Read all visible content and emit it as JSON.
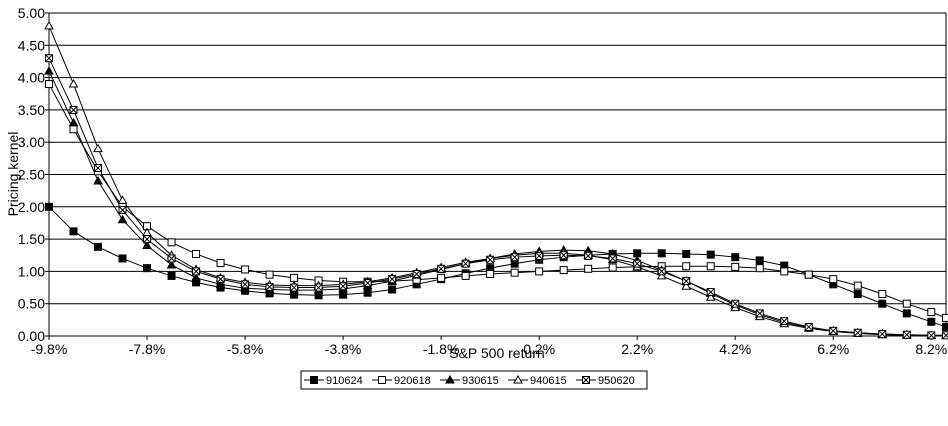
{
  "chart_data": {
    "type": "line",
    "x_label": "S&P 500 return",
    "y_label": "Pricing kernel",
    "x": [
      -9.8,
      -9.3,
      -8.8,
      -8.3,
      -7.8,
      -7.3,
      -6.8,
      -6.3,
      -5.8,
      -5.3,
      -4.8,
      -4.3,
      -3.8,
      -3.3,
      -2.8,
      -2.3,
      -1.8,
      -1.3,
      -0.8,
      -0.3,
      0.2,
      0.7,
      1.2,
      1.7,
      2.2,
      2.7,
      3.2,
      3.7,
      4.2,
      4.7,
      5.2,
      5.7,
      6.2,
      6.7,
      7.2,
      7.7,
      8.2,
      8.5
    ],
    "xlim": [
      -9.8,
      8.5
    ],
    "xticks": [
      {
        "value": -9.8,
        "label": "-9.8%"
      },
      {
        "value": -7.8,
        "label": "-7.8%"
      },
      {
        "value": -5.8,
        "label": "-5.8%"
      },
      {
        "value": -3.8,
        "label": "-3.8%"
      },
      {
        "value": -1.8,
        "label": "-1.8%"
      },
      {
        "value": 0.2,
        "label": "0.2%"
      },
      {
        "value": 2.2,
        "label": "2.2%"
      },
      {
        "value": 4.2,
        "label": "4.2%"
      },
      {
        "value": 6.2,
        "label": "6.2%"
      },
      {
        "value": 8.2,
        "label": "8.2%"
      }
    ],
    "ylim": [
      0,
      5
    ],
    "yticks": [
      {
        "value": 0,
        "label": "0.00"
      },
      {
        "value": 0.5,
        "label": "0.50"
      },
      {
        "value": 1,
        "label": "1.00"
      },
      {
        "value": 1.5,
        "label": "1.50"
      },
      {
        "value": 2,
        "label": "2.00"
      },
      {
        "value": 2.5,
        "label": "2.50"
      },
      {
        "value": 3,
        "label": "3.00"
      },
      {
        "value": 3.5,
        "label": "3.50"
      },
      {
        "value": 4,
        "label": "4.00"
      },
      {
        "value": 4.5,
        "label": "4.50"
      },
      {
        "value": 5,
        "label": "5.00"
      }
    ],
    "grid": true,
    "legend": "bottom",
    "series": [
      {
        "name": "910624",
        "color": "#000000",
        "marker": "square",
        "filled": true,
        "values": [
          2.0,
          1.62,
          1.38,
          1.2,
          1.05,
          0.93,
          0.83,
          0.75,
          0.7,
          0.66,
          0.64,
          0.63,
          0.64,
          0.67,
          0.72,
          0.8,
          0.88,
          0.97,
          1.05,
          1.12,
          1.18,
          1.22,
          1.25,
          1.27,
          1.28,
          1.28,
          1.27,
          1.26,
          1.22,
          1.17,
          1.09,
          0.95,
          0.8,
          0.65,
          0.5,
          0.35,
          0.22,
          0.14
        ]
      },
      {
        "name": "920618",
        "color": "#000000",
        "marker": "square",
        "filled": false,
        "values": [
          3.9,
          3.2,
          2.55,
          2.0,
          1.7,
          1.45,
          1.27,
          1.13,
          1.03,
          0.95,
          0.9,
          0.86,
          0.84,
          0.84,
          0.85,
          0.87,
          0.9,
          0.93,
          0.96,
          0.98,
          1.0,
          1.02,
          1.04,
          1.06,
          1.07,
          1.08,
          1.08,
          1.08,
          1.07,
          1.05,
          1.0,
          0.95,
          0.88,
          0.78,
          0.65,
          0.5,
          0.37,
          0.28
        ]
      },
      {
        "name": "930615",
        "color": "#000000",
        "marker": "triangle",
        "filled": true,
        "values": [
          4.1,
          3.3,
          2.4,
          1.8,
          1.4,
          1.1,
          0.9,
          0.8,
          0.74,
          0.72,
          0.71,
          0.71,
          0.73,
          0.78,
          0.85,
          0.94,
          1.03,
          1.12,
          1.2,
          1.27,
          1.31,
          1.33,
          1.32,
          1.27,
          1.17,
          1.02,
          0.85,
          0.66,
          0.48,
          0.33,
          0.21,
          0.13,
          0.08,
          0.05,
          0.03,
          0.02,
          0.01,
          0.01
        ]
      },
      {
        "name": "940615",
        "color": "#000000",
        "marker": "triangle",
        "filled": false,
        "values": [
          4.8,
          3.9,
          2.9,
          2.1,
          1.6,
          1.25,
          1.03,
          0.9,
          0.83,
          0.79,
          0.78,
          0.78,
          0.8,
          0.84,
          0.9,
          0.98,
          1.06,
          1.14,
          1.2,
          1.25,
          1.28,
          1.28,
          1.25,
          1.18,
          1.07,
          0.93,
          0.77,
          0.6,
          0.44,
          0.3,
          0.19,
          0.12,
          0.07,
          0.04,
          0.02,
          0.01,
          0.01,
          0.01
        ]
      },
      {
        "name": "950620",
        "color": "#000000",
        "marker": "crossed-square",
        "filled": false,
        "values": [
          4.3,
          3.5,
          2.6,
          1.95,
          1.5,
          1.2,
          1.0,
          0.88,
          0.8,
          0.76,
          0.75,
          0.75,
          0.77,
          0.82,
          0.88,
          0.96,
          1.04,
          1.12,
          1.18,
          1.22,
          1.24,
          1.25,
          1.24,
          1.2,
          1.12,
          1.0,
          0.85,
          0.68,
          0.5,
          0.35,
          0.23,
          0.14,
          0.08,
          0.05,
          0.03,
          0.02,
          0.01,
          0.01
        ]
      }
    ]
  }
}
